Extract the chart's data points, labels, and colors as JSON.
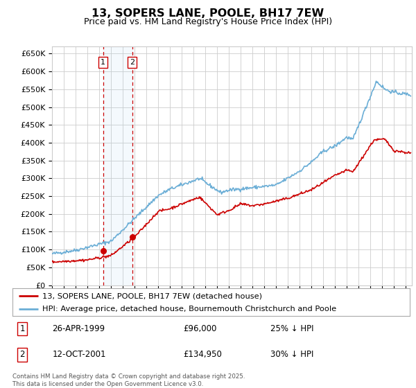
{
  "title": "13, SOPERS LANE, POOLE, BH17 7EW",
  "subtitle": "Price paid vs. HM Land Registry's House Price Index (HPI)",
  "legend_line1": "13, SOPERS LANE, POOLE, BH17 7EW (detached house)",
  "legend_line2": "HPI: Average price, detached house, Bournemouth Christchurch and Poole",
  "transaction1_date": "26-APR-1999",
  "transaction1_price": "£96,000",
  "transaction1_hpi": "25% ↓ HPI",
  "transaction1_year": 1999.32,
  "transaction1_value": 96000,
  "transaction2_date": "12-OCT-2001",
  "transaction2_price": "£134,950",
  "transaction2_hpi": "30% ↓ HPI",
  "transaction2_year": 2001.79,
  "transaction2_value": 134950,
  "copyright": "Contains HM Land Registry data © Crown copyright and database right 2025.\nThis data is licensed under the Open Government Licence v3.0.",
  "hpi_color": "#6baed6",
  "price_color": "#cc0000",
  "background_color": "#ffffff",
  "grid_color": "#cccccc",
  "ylim": [
    0,
    670000
  ],
  "xlim_start": 1995.0,
  "xlim_end": 2025.5
}
